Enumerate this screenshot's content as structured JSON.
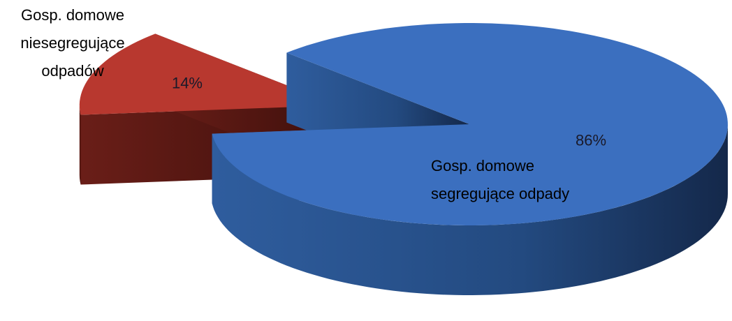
{
  "chart_data": {
    "type": "pie",
    "categories": [
      "Gosp. domowe segregujące odpady",
      "Gosp. domowe niesegregujące odpadów"
    ],
    "values": [
      86,
      14
    ],
    "value_labels": [
      "86%",
      "14%"
    ],
    "colors": [
      "#3b6fbf",
      "#b8382f"
    ]
  }
}
